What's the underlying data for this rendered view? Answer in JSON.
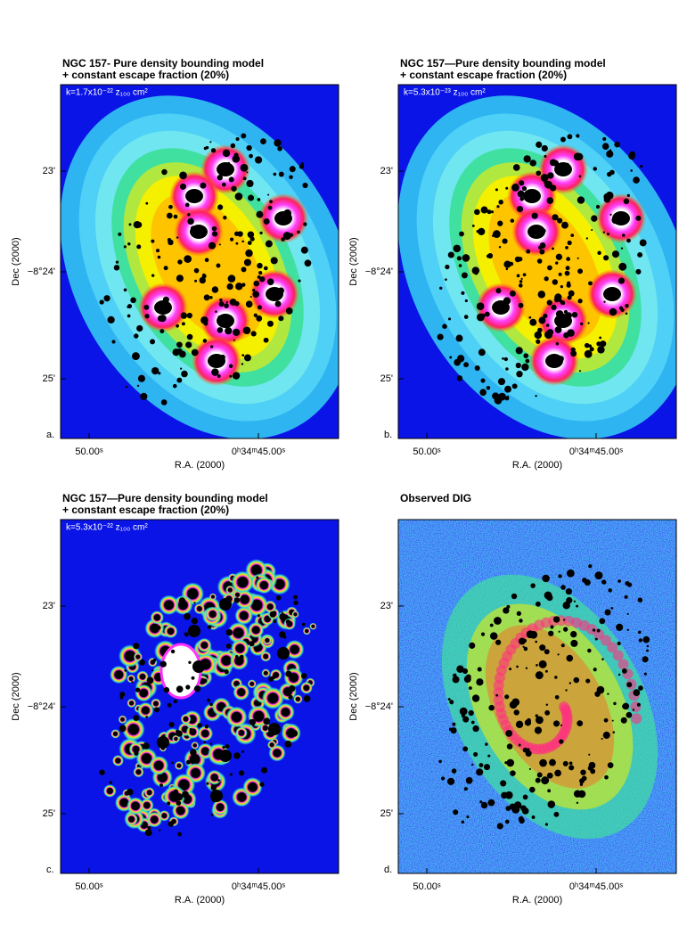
{
  "panels": [
    {
      "title": [
        "NGC 157- Pure density bounding model",
        "+ constant escape fraction (20%)"
      ],
      "annotation": "k=1.7x10⁻²² z₁₀₀ cm²",
      "letter": "a.",
      "yticks": [
        "23'",
        "−8°24'",
        "25'"
      ],
      "xticks": [
        "50.00ˢ",
        "0ʰ34ᵐ45.00ˢ"
      ],
      "ylabel": "Dec (2000)",
      "xlabel": "R.A. (2000)"
    },
    {
      "title": [
        "NGC 157—Pure density bounding model",
        "+ constant escape fraction (20%)"
      ],
      "annotation": "k=5.3x10⁻²³ z₁₀₀ cm²",
      "letter": "b.",
      "yticks": [
        "23'",
        "−8°24'",
        "25'"
      ],
      "xticks": [
        "50.00ˢ",
        "0ʰ34ᵐ45.00ˢ"
      ],
      "ylabel": "Dec (2000)",
      "xlabel": "R.A. (2000)"
    },
    {
      "title": [
        "NGC 157—Pure density bounding model",
        "+ constant escape fraction (20%)"
      ],
      "annotation": "k=5.3x10⁻²² z₁₀₀ cm²",
      "letter": "c.",
      "yticks": [
        "23'",
        "−8°24'",
        "25'"
      ],
      "xticks": [
        "50.00ˢ",
        "0ʰ34ᵐ45.00ˢ"
      ],
      "ylabel": "Dec (2000)",
      "xlabel": "R.A. (2000)"
    },
    {
      "title": [
        "Observed DIG"
      ],
      "letter": "d.",
      "yticks": [
        "23'",
        "−8°24'",
        "25'"
      ],
      "xticks": [
        "50.00ˢ",
        "0ʰ34ᵐ45.00ˢ"
      ],
      "ylabel": "Dec (2000)",
      "xlabel": "R.A. (2000)"
    }
  ]
}
